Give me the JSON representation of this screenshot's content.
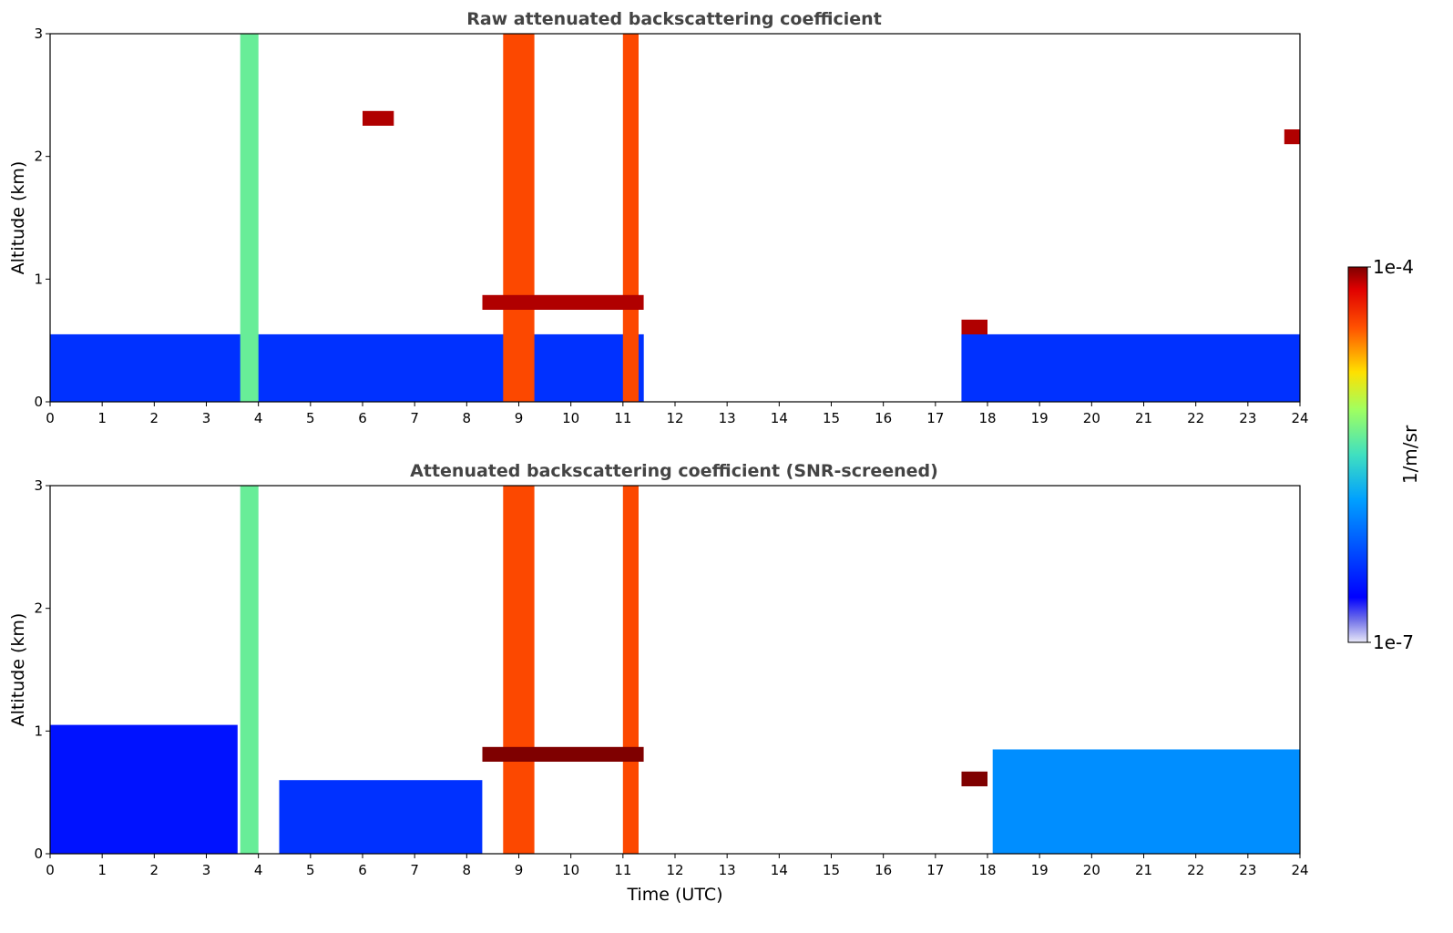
{
  "chart_data": [
    {
      "type": "heatmap",
      "title": "Raw attenuated backscattering coefficient",
      "xlabel": "",
      "ylabel": "Altitude (km)",
      "xlim": [
        0,
        24
      ],
      "ylim": [
        0,
        3
      ],
      "xticks": [
        "0",
        "1",
        "2",
        "3",
        "4",
        "5",
        "6",
        "7",
        "8",
        "9",
        "10",
        "11",
        "12",
        "13",
        "14",
        "15",
        "16",
        "17",
        "18",
        "19",
        "20",
        "21",
        "22",
        "23",
        "24"
      ],
      "yticks": [
        "0",
        "1",
        "2",
        "3"
      ],
      "no_data_intervals_utc": [
        [
          11.4,
          17.5
        ]
      ],
      "colorbar": {
        "label": "1/m/sr",
        "min": "1e-7",
        "max": "1e-4",
        "colormap": "jet",
        "scale": "log"
      },
      "features": [
        {
          "name": "boundary layer",
          "start_utc": 0,
          "end_utc": 24,
          "top_km": 0.55,
          "level": 0.2
        },
        {
          "name": "precipitation column",
          "start_utc": 3.65,
          "end_utc": 4.0,
          "top_km": 3.0,
          "level": 0.55
        },
        {
          "name": "precipitation column",
          "start_utc": 8.7,
          "end_utc": 9.3,
          "top_km": 3.0,
          "level": 0.85
        },
        {
          "name": "precipitation column",
          "start_utc": 11.0,
          "end_utc": 11.3,
          "top_km": 3.0,
          "level": 0.85
        },
        {
          "name": "cloud layer",
          "start_utc": 8.3,
          "end_utc": 11.4,
          "base_km": 0.75,
          "level": 0.97
        },
        {
          "name": "cloud fragments",
          "start_utc": 6.0,
          "end_utc": 6.6,
          "base_km": 2.25,
          "level": 0.97
        },
        {
          "name": "cloud layer",
          "start_utc": 17.5,
          "end_utc": 18.0,
          "base_km": 0.55,
          "level": 0.97
        },
        {
          "name": "cloud fragments",
          "start_utc": 23.7,
          "end_utc": 24.0,
          "base_km": 2.1,
          "level": 0.97
        }
      ]
    },
    {
      "type": "heatmap",
      "title": "Attenuated backscattering coefficient (SNR-screened)",
      "xlabel": "Time (UTC)",
      "ylabel": "Altitude (km)",
      "xlim": [
        0,
        24
      ],
      "ylim": [
        0,
        3
      ],
      "xticks": [
        "0",
        "1",
        "2",
        "3",
        "4",
        "5",
        "6",
        "7",
        "8",
        "9",
        "10",
        "11",
        "12",
        "13",
        "14",
        "15",
        "16",
        "17",
        "18",
        "19",
        "20",
        "21",
        "22",
        "23",
        "24"
      ],
      "yticks": [
        "0",
        "1",
        "2",
        "3"
      ],
      "no_data_intervals_utc": [
        [
          11.4,
          17.5
        ]
      ],
      "colorbar": {
        "label": "1/m/sr",
        "min": "1e-7",
        "max": "1e-4",
        "colormap": "jet",
        "scale": "log"
      },
      "features": [
        {
          "name": "screened boundary layer",
          "start_utc": 0,
          "end_utc": 3.6,
          "top_km": 1.05,
          "level": 0.15
        },
        {
          "name": "screened boundary layer",
          "start_utc": 4.4,
          "end_utc": 8.3,
          "top_km": 0.6,
          "level": 0.2
        },
        {
          "name": "screened boundary layer",
          "start_utc": 18.1,
          "end_utc": 24.0,
          "top_km": 0.85,
          "level": 0.35
        },
        {
          "name": "precipitation column",
          "start_utc": 3.65,
          "end_utc": 4.0,
          "top_km": 3.0,
          "level": 0.55
        },
        {
          "name": "precipitation column",
          "start_utc": 8.7,
          "end_utc": 9.3,
          "top_km": 3.0,
          "level": 0.85
        },
        {
          "name": "precipitation column",
          "start_utc": 11.0,
          "end_utc": 11.3,
          "top_km": 3.0,
          "level": 0.85
        },
        {
          "name": "cloud layer",
          "start_utc": 8.3,
          "end_utc": 11.4,
          "base_km": 0.75,
          "level": 1.0
        },
        {
          "name": "cloud layer",
          "start_utc": 17.5,
          "end_utc": 18.0,
          "base_km": 0.55,
          "level": 1.0
        }
      ]
    }
  ]
}
